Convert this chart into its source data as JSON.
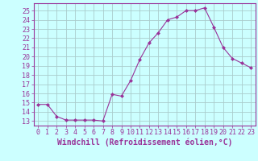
{
  "x": [
    0,
    1,
    2,
    3,
    4,
    5,
    6,
    7,
    8,
    9,
    10,
    11,
    12,
    13,
    14,
    15,
    16,
    17,
    18,
    19,
    20,
    21,
    22,
    23
  ],
  "y": [
    14.8,
    14.8,
    13.5,
    13.1,
    13.1,
    13.1,
    13.1,
    13.0,
    15.9,
    15.7,
    17.4,
    19.7,
    21.5,
    22.6,
    24.0,
    24.3,
    25.0,
    25.0,
    25.3,
    23.2,
    21.0,
    19.8,
    19.3,
    18.8
  ],
  "line_color": "#993399",
  "marker": "D",
  "marker_size": 2.0,
  "xlabel": "Windchill (Refroidissement éolien,°C)",
  "xlabel_fontsize": 7.0,
  "ylabel_ticks": [
    13,
    14,
    15,
    16,
    17,
    18,
    19,
    20,
    21,
    22,
    23,
    24,
    25
  ],
  "xlim": [
    -0.5,
    23.5
  ],
  "ylim": [
    12.5,
    25.8
  ],
  "bg_color": "#ccffff",
  "grid_color": "#aacccc",
  "tick_color": "#993399",
  "tick_fontsize": 6.0,
  "spine_color": "#993399"
}
